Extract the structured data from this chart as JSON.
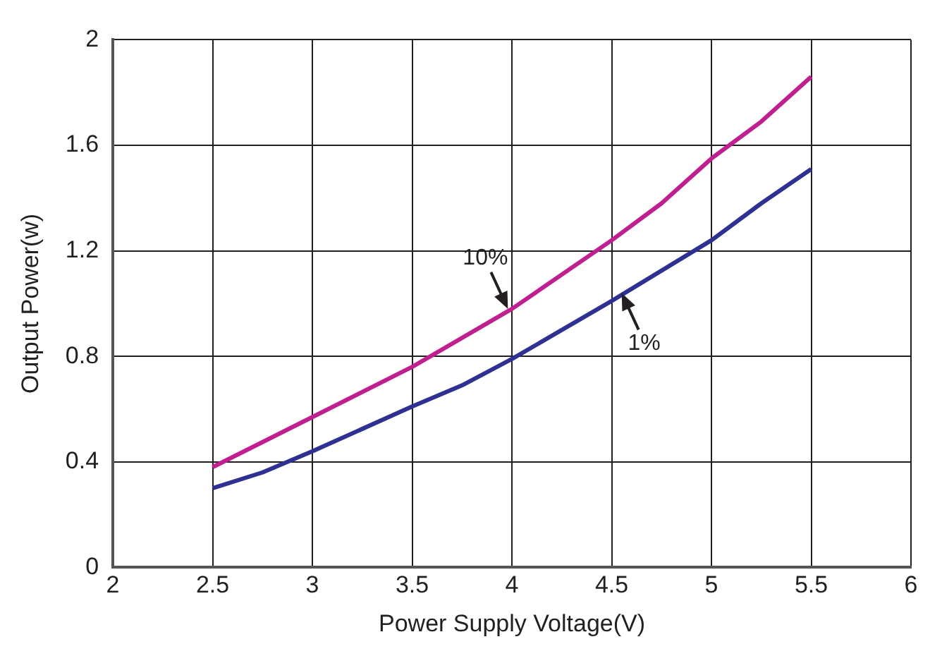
{
  "chart_data": {
    "type": "line",
    "xlabel": "Power Supply Voltage(V)",
    "ylabel": "Output Power(w)",
    "xlim": [
      2,
      6
    ],
    "xticks": [
      2,
      2.5,
      3,
      3.5,
      4,
      4.5,
      5,
      5.5,
      6
    ],
    "ylim": [
      0,
      2
    ],
    "yticks": [
      0,
      0.4,
      0.8,
      1.2,
      1.6,
      2
    ],
    "grid": true,
    "legend": false,
    "marker": "none",
    "line_style": "solid",
    "series": [
      {
        "color": "#c0208f",
        "x": [
          2.5,
          3,
          3.5,
          4,
          4.5,
          4.75,
          5,
          5.25,
          5.5
        ],
        "values": [
          0.38,
          0.57,
          0.76,
          0.98,
          1.24,
          1.38,
          1.55,
          1.69,
          1.86
        ]
      },
      {
        "color": "#2e3192",
        "x": [
          2.5,
          2.75,
          3,
          3.5,
          3.75,
          4,
          4.5,
          5,
          5.25,
          5.5
        ],
        "values": [
          0.3,
          0.36,
          0.44,
          0.61,
          0.69,
          0.79,
          1.01,
          1.24,
          1.38,
          1.51
        ]
      }
    ],
    "annotations": [
      {
        "text": "10%",
        "x": 3.98,
        "y": 0.98
      },
      {
        "text": "1%",
        "x": 4.55,
        "y": 1.04
      }
    ]
  }
}
